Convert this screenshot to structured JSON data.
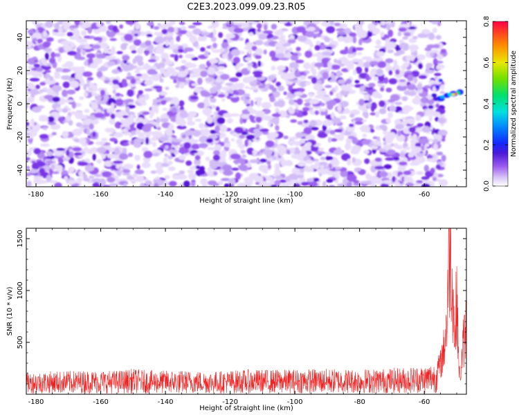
{
  "title": "C2E3.2023.099.09.23.R05",
  "chart_data": [
    {
      "type": "heatmap",
      "xlabel": "Height of straight line (km)",
      "ylabel": "Frequency (Hz)",
      "xlim": [
        -183,
        -47
      ],
      "ylim": [
        -50,
        50
      ],
      "x_ticks": [
        -180,
        -160,
        -140,
        -120,
        -100,
        -80,
        -60
      ],
      "y_ticks": [
        -40,
        -20,
        0,
        20,
        40
      ],
      "colorbar": {
        "label": "Normalized spectral amplitude",
        "range": [
          0.0,
          0.8
        ],
        "ticks": [
          0.0,
          0.2,
          0.4,
          0.6,
          0.8
        ]
      },
      "description_values": {
        "background_amplitude_range": [
          0.0,
          0.15
        ],
        "peak_region_x": [
          -56,
          -48
        ],
        "peak_region_y": [
          0,
          12
        ],
        "peak_amplitude": 0.8
      }
    },
    {
      "type": "line",
      "xlabel": "Height of straight line (km)",
      "ylabel": "SNR (10 * v/v)",
      "xlim": [
        -183,
        -47
      ],
      "ylim": [
        0,
        1600
      ],
      "x_ticks": [
        -180,
        -160,
        -140,
        -120,
        -100,
        -80,
        -60
      ],
      "y_ticks": [
        500,
        1000,
        1500
      ],
      "color": "#ee2222",
      "series": [
        {
          "x": [
            -183,
            -175,
            -165,
            -155,
            -150,
            -145,
            -135,
            -125,
            -115,
            -105,
            -95,
            -85,
            -75,
            -65,
            -60,
            -57,
            -55,
            -54,
            -53,
            -52.5,
            -52,
            -51.5,
            -51,
            -50.5,
            -50,
            -49.5,
            -49,
            -48,
            -47
          ],
          "y": [
            130,
            135,
            140,
            140,
            150,
            140,
            140,
            135,
            145,
            145,
            150,
            150,
            150,
            160,
            170,
            190,
            300,
            450,
            750,
            1350,
            1600,
            1250,
            900,
            500,
            1100,
            400,
            150,
            500,
            720
          ]
        }
      ]
    }
  ]
}
